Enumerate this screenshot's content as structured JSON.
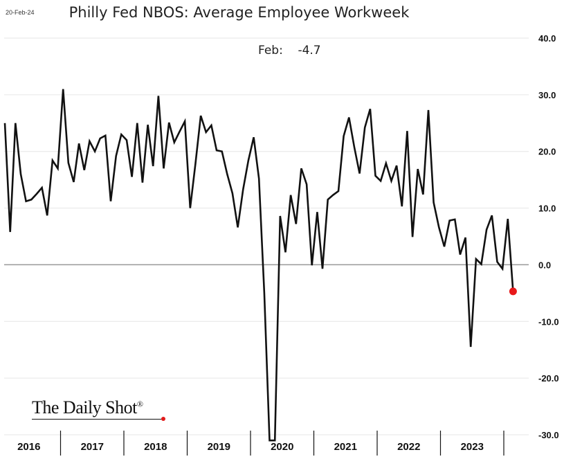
{
  "header": {
    "date_stamp": "20-Feb-24",
    "title": "Philly Fed NBOS: Average Employee Workweek"
  },
  "annotation": {
    "label": "Feb:",
    "value": "-4.7"
  },
  "watermark": {
    "text": "The Daily Shot",
    "registered": "®"
  },
  "colors": {
    "line": "#111111",
    "last_point": "#e8191a",
    "zero_line": "#999999",
    "grid": "#e6e6e6",
    "watermark_dot": "#e21b1b"
  },
  "chart_data": {
    "type": "line",
    "title": "Philly Fed NBOS: Average Employee Workweek",
    "xlabel": "",
    "ylabel": "",
    "ylim": [
      -30,
      40
    ],
    "y_ticks": [
      "40.0",
      "30.0",
      "20.0",
      "10.0",
      "0.0",
      "-10.0",
      "-20.0",
      "-30.0"
    ],
    "y_axis_side": "right",
    "x_tick_labels": [
      "2016",
      "2017",
      "2018",
      "2019",
      "2020",
      "2021",
      "2022",
      "2023"
    ],
    "grid": true,
    "zero_line": true,
    "series": [
      {
        "values": [
          25.0,
          5.8,
          25.0,
          16.0,
          11.2,
          11.5,
          12.5,
          13.6,
          8.7,
          18.4,
          17.0,
          31.0,
          18.0,
          14.6,
          21.4,
          16.7,
          21.8,
          20.0,
          22.3,
          22.8,
          11.2,
          19.2,
          23.0,
          22.0,
          15.5,
          25.0,
          14.5,
          24.7,
          17.4,
          29.8,
          17.0,
          25.1,
          21.6,
          23.5,
          25.3,
          10.0,
          17.8,
          26.3,
          23.4,
          24.6,
          20.2,
          20.0,
          16.0,
          12.6,
          6.6,
          13.3,
          18.4,
          22.5,
          15.2,
          -5.0,
          -31.0,
          -31.0,
          8.6,
          2.2,
          12.3,
          7.2,
          17.0,
          14.2,
          -0.1,
          9.3,
          -0.7,
          11.5,
          12.3,
          13.0,
          22.7,
          26.0,
          20.8,
          16.1,
          24.2,
          27.5,
          15.7,
          14.8,
          17.9,
          14.8,
          17.5,
          10.3,
          23.6,
          4.9,
          16.9,
          12.4,
          27.3,
          11.0,
          6.6,
          3.2,
          7.8,
          8.0,
          1.8,
          4.8,
          -14.5,
          1.0,
          0.1,
          6.2,
          8.7,
          0.5,
          -0.7,
          8.1,
          -4.7
        ]
      }
    ],
    "last_point": {
      "label": "Feb",
      "value": -4.7
    }
  }
}
